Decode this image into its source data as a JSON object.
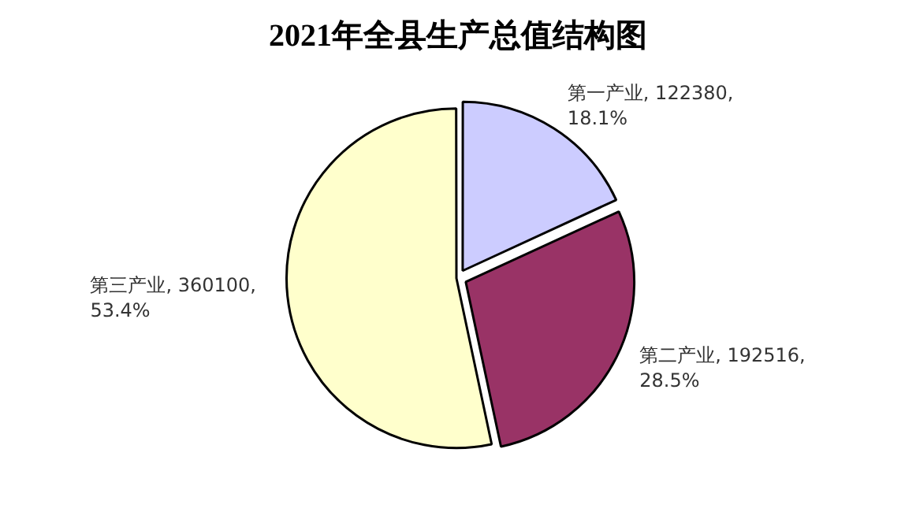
{
  "chart_data": {
    "type": "pie",
    "title": "2021年全县生产总值结构图",
    "categories": [
      "第一产业",
      "第二产业",
      "第三产业"
    ],
    "values": [
      122380,
      192516,
      360100
    ],
    "value_labels": [
      "122380, 18.1%",
      "192516, 28.5%",
      "360100, 53.4%"
    ],
    "colors": [
      "#ccccff",
      "#993366",
      "#ffffcc"
    ],
    "legend": false
  }
}
